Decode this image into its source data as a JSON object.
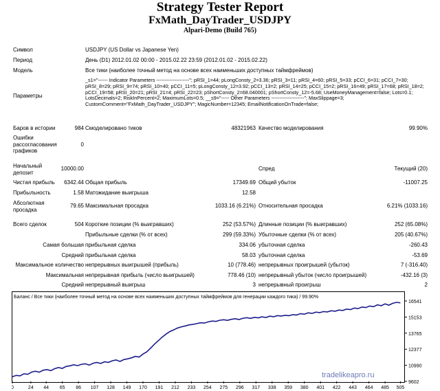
{
  "title": "Strategy Tester Report",
  "subtitle": "FxMath_DayTrader_USDJPY",
  "server": "Alpari-Demo (Build 765)",
  "info": {
    "symbol_label": "Символ",
    "symbol_value": "USDJPY (US Dollar vs Japanese Yen)",
    "period_label": "Период",
    "period_value": "День (D1) 2012.01.02 00:00 - 2015.02.22 23:59 (2012.01.02 - 2015.02.22)",
    "model_label": "Модель",
    "model_value": "Все тики (наиболее точный метод на основе всех наименьших доступных таймфреймов)",
    "params_label": "Параметры",
    "params_value": "_s1=\"------ Indicator Parameters --------------------\"; pRSI_1=44; pLongConsty_2=3.36; pRSI_3=11; pRSI_4=60; pRSI_5=33; pCCI_6=31; pCCI_7=30; pRSI_8=29; pRSI_9=74; pRSI_10=40; pCCI_11=5; pLongConsty_12=3.92; pCCI_13=2; pRSI_14=25; pCCI_15=2; pRSI_16=49; pRSI_17=68; pRSI_18=2; pCCI_19=58; pRSI_20=21; pRSI_21=4; pRSI_22=23; pShortConsty_2=68.040001; pShortConsty_12=-5.68; UseMoneyManagement=false; Lots=0.1; LotsDecimals=2; RiskInPercent=2; MaximumLots=0.5; __s9=\"----- Other Parameters --------------------\"; MaxSlippage=3; CustomComment=\"FxMath_DayTrader_USDJPY\"; MagicNumber=12345; EmailNotificationOnTrade=false;"
  },
  "stats": {
    "bars_label": "Баров в истории",
    "bars_value": "984",
    "ticks_label": "Смоделировано тиков",
    "ticks_value": "48321963",
    "quality_label": "Качество моделирования",
    "quality_value": "99.90%",
    "errors_label": "Ошибки рассогласования графиков",
    "errors_value": "0",
    "deposit_label": "Начальный депозит",
    "deposit_value": "10000.00",
    "spread_label": "Спред",
    "spread_value": "Текущий (20)",
    "net_profit_label": "Чистая прибыль",
    "net_profit_value": "6342.44",
    "gross_profit_label": "Общая прибыль",
    "gross_profit_value": "17349.69",
    "gross_loss_label": "Общий убыток",
    "gross_loss_value": "-11007.25",
    "pf_label": "Прибыльность",
    "pf_value": "1.58",
    "expected_label": "Матожидание выигрыша",
    "expected_value": "12.58",
    "abs_dd_label": "Абсолютная просадка",
    "abs_dd_value": "79.65",
    "max_dd_label": "Максимальная просадка",
    "max_dd_value": "1033.16 (6.21%)",
    "rel_dd_label": "Относительная просадка",
    "rel_dd_value": "6.21% (1033.16)",
    "total_trades_label": "Всего сделок",
    "total_trades_value": "504",
    "short_label": "Короткие позиции (% выигравших)",
    "short_value": "252 (53.57%)",
    "long_label": "Длинные позиции (% выигравших)",
    "long_value": "252 (65.08%)",
    "profit_trades_label": "Прибыльные сделки (% от всех)",
    "profit_trades_value": "299 (59.33%)",
    "loss_trades_label": "Убыточные сделки (% от всех)",
    "loss_trades_value": "205 (40.67%)",
    "largest_label": "Самая большая",
    "largest_profit_label": "прибыльная сделка",
    "largest_profit_value": "334.06",
    "largest_loss_label": "убыточная сделка",
    "largest_loss_value": "-260.43",
    "average_label": "Средний",
    "avg_profit_label": "прибыльная сделка",
    "avg_profit_value": "58.03",
    "avg_loss_label": "убыточная сделка",
    "avg_loss_value": "-53.69",
    "max_count_label": "Максимальное количество",
    "cons_wins_label": "непрерывных выигрышей (прибыль)",
    "cons_wins_value": "10 (778.46)",
    "cons_losses_label": "непрерывных проигрышей (убыток)",
    "cons_losses_value": "7 (-316.40)",
    "maximal_label": "Максимальная",
    "cons_profit_label": "непрерывная прибыль (число выигрышей)",
    "cons_profit_value": "778.46 (10)",
    "cons_loss_label": "непрерывный убыток (число проигрышей)",
    "cons_loss_value": "-432.16 (3)",
    "avg2_label": "Средний",
    "avg_cons_wins_label": "непрерывный выигрыш",
    "avg_cons_wins_value": "3",
    "avg_cons_losses_label": "непрерывный проигрыш",
    "avg_cons_losses_value": "2"
  },
  "chart_data": {
    "type": "line",
    "title": "Баланс / Все тики (наиболее точный метод на основе всех наименьших доступных таймфреймов для генерации каждого тика) / 99.90%",
    "x_ticks": [
      "0",
      "24",
      "44",
      "65",
      "86",
      "107",
      "128",
      "149",
      "170",
      "191",
      "212",
      "233",
      "254",
      "275",
      "296",
      "317",
      "338",
      "359",
      "380",
      "401",
      "422",
      "443",
      "464",
      "485",
      "505"
    ],
    "y_ticks": [
      "16541",
      "15153",
      "13765",
      "12377",
      "10990",
      "9602"
    ],
    "ylim": [
      9602,
      16541
    ],
    "xlim": [
      0,
      510
    ],
    "series": [
      {
        "x": [
          0,
          5,
          10,
          15,
          20,
          25,
          30,
          35,
          40,
          45,
          50,
          55,
          60,
          65,
          70,
          75,
          80,
          85,
          90,
          95,
          100,
          105,
          110,
          115,
          120,
          125,
          130,
          135,
          140,
          145,
          150,
          155,
          160,
          165,
          170,
          175,
          180,
          185,
          190,
          195,
          200,
          205,
          210,
          215,
          220,
          225,
          230,
          235,
          240,
          245,
          250,
          255,
          260,
          265,
          270,
          275,
          280,
          285,
          290,
          295,
          300,
          305,
          310,
          315,
          320,
          325,
          330,
          335,
          340,
          345,
          350,
          355,
          360,
          365,
          370,
          375,
          380,
          385,
          390,
          395,
          400,
          405,
          410,
          415,
          420,
          425,
          430,
          435,
          440,
          445,
          450,
          455,
          460,
          465,
          470,
          475,
          480,
          485,
          490,
          495,
          500,
          505
        ],
        "values": [
          10000,
          10120,
          10080,
          10260,
          10210,
          10400,
          10480,
          10390,
          10560,
          10620,
          10530,
          10700,
          10800,
          10720,
          10890,
          10950,
          11040,
          10960,
          11080,
          11120,
          11010,
          11170,
          11230,
          11150,
          11290,
          11240,
          11380,
          11450,
          11320,
          11480,
          11550,
          11630,
          11760,
          11700,
          11960,
          12150,
          12480,
          12820,
          13120,
          13420,
          13680,
          13900,
          14050,
          14210,
          14310,
          14390,
          14480,
          14520,
          14590,
          14660,
          14640,
          14740,
          14810,
          14780,
          14880,
          14920,
          14870,
          14960,
          15010,
          14940,
          15050,
          15100,
          15040,
          15130,
          15090,
          15170,
          15120,
          15230,
          15180,
          15280,
          15240,
          15310,
          15270,
          15360,
          15330,
          15450,
          15400,
          15520,
          15470,
          15580,
          15540,
          15630,
          15600,
          15700,
          15660,
          15760,
          15720,
          15840,
          15800,
          15930,
          15880,
          16020,
          15970,
          16110,
          16050,
          16210,
          16130,
          16290,
          16180,
          16340,
          16420,
          16380
        ]
      }
    ]
  },
  "watermark": "tradelikeapro.ru"
}
